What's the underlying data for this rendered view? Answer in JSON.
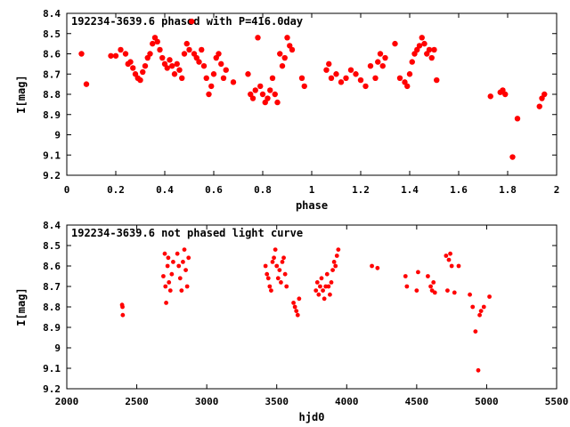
{
  "chart_data": [
    {
      "type": "scatter",
      "title": "192234-3639.6 phased with P=416.0day",
      "xlabel": "phase",
      "ylabel": "I[mag]",
      "xlim": [
        0,
        2
      ],
      "ylim": [
        8.4,
        9.2
      ],
      "y_inverted": true,
      "x_ticks": [
        "0",
        "0.2",
        "0.4",
        "0.6",
        "0.8",
        "1",
        "1.2",
        "1.4",
        "1.6",
        "1.8",
        "2"
      ],
      "y_ticks": [
        "8.4",
        "8.5",
        "8.6",
        "8.7",
        "8.8",
        "8.9",
        "9",
        "9.1",
        "9.2"
      ],
      "marker_color": "#ff0000",
      "x": [
        0.06,
        0.08,
        0.18,
        0.2,
        0.22,
        0.24,
        0.25,
        0.26,
        0.27,
        0.28,
        0.29,
        0.3,
        0.31,
        0.32,
        0.33,
        0.34,
        0.35,
        0.36,
        0.37,
        0.38,
        0.39,
        0.4,
        0.41,
        0.42,
        0.43,
        0.44,
        0.45,
        0.46,
        0.47,
        0.48,
        0.49,
        0.5,
        0.51,
        0.52,
        0.53,
        0.54,
        0.55,
        0.56,
        0.57,
        0.58,
        0.59,
        0.6,
        0.61,
        0.62,
        0.63,
        0.64,
        0.65,
        0.68,
        0.74,
        0.75,
        0.76,
        0.77,
        0.78,
        0.79,
        0.8,
        0.81,
        0.82,
        0.83,
        0.84,
        0.85,
        0.86,
        0.87,
        0.88,
        0.89,
        0.9,
        0.91,
        0.92,
        0.96,
        0.97,
        1.06,
        1.07,
        1.08,
        1.1,
        1.12,
        1.14,
        1.16,
        1.18,
        1.2,
        1.22,
        1.24,
        1.26,
        1.27,
        1.28,
        1.29,
        1.3,
        1.34,
        1.36,
        1.38,
        1.39,
        1.4,
        1.41,
        1.42,
        1.43,
        1.44,
        1.45,
        1.46,
        1.47,
        1.48,
        1.49,
        1.5,
        1.51,
        1.73,
        1.77,
        1.78,
        1.79,
        1.82,
        1.84,
        1.93,
        1.94,
        1.95
      ],
      "y": [
        8.6,
        8.75,
        8.61,
        8.61,
        8.58,
        8.6,
        8.65,
        8.64,
        8.67,
        8.7,
        8.72,
        8.73,
        8.69,
        8.66,
        8.62,
        8.6,
        8.55,
        8.52,
        8.54,
        8.58,
        8.62,
        8.65,
        8.67,
        8.63,
        8.66,
        8.7,
        8.65,
        8.68,
        8.72,
        8.6,
        8.55,
        8.58,
        8.44,
        8.6,
        8.62,
        8.64,
        8.58,
        8.66,
        8.72,
        8.8,
        8.76,
        8.7,
        8.62,
        8.6,
        8.65,
        8.72,
        8.68,
        8.74,
        8.7,
        8.8,
        8.82,
        8.78,
        8.52,
        8.76,
        8.8,
        8.84,
        8.82,
        8.78,
        8.72,
        8.8,
        8.84,
        8.6,
        8.66,
        8.62,
        8.52,
        8.56,
        8.58,
        8.72,
        8.76,
        8.68,
        8.65,
        8.72,
        8.7,
        8.74,
        8.72,
        8.68,
        8.7,
        8.73,
        8.76,
        8.66,
        8.72,
        8.64,
        8.6,
        8.66,
        8.62,
        8.55,
        8.72,
        8.74,
        8.76,
        8.7,
        8.64,
        8.6,
        8.58,
        8.56,
        8.52,
        8.55,
        8.6,
        8.58,
        8.62,
        8.58,
        8.73,
        8.81,
        8.79,
        8.78,
        8.8,
        9.11,
        8.92,
        8.86,
        8.82,
        8.8
      ],
      "subtitle": ""
    },
    {
      "type": "scatter",
      "title": "192234-3639.6 not phased light curve",
      "xlabel": "hjd0",
      "ylabel": "I[mag]",
      "xlim": [
        2000,
        5500
      ],
      "ylim": [
        8.4,
        9.2
      ],
      "y_inverted": true,
      "x_ticks": [
        "2000",
        "2500",
        "3000",
        "3500",
        "4000",
        "4500",
        "5000",
        "5500"
      ],
      "y_ticks": [
        "8.4",
        "8.5",
        "8.6",
        "8.7",
        "8.8",
        "8.9",
        "9",
        "9.1",
        "9.2"
      ],
      "marker_color": "#ff0000",
      "x": [
        2395,
        2398,
        2400,
        2690,
        2700,
        2705,
        2710,
        2720,
        2725,
        2730,
        2740,
        2750,
        2760,
        2790,
        2800,
        2810,
        2820,
        2830,
        2840,
        2850,
        2860,
        2870,
        3420,
        3430,
        3440,
        3450,
        3460,
        3470,
        3480,
        3490,
        3500,
        3510,
        3520,
        3530,
        3540,
        3550,
        3560,
        3570,
        3620,
        3630,
        3640,
        3650,
        3660,
        3780,
        3790,
        3800,
        3810,
        3820,
        3830,
        3840,
        3850,
        3860,
        3870,
        3880,
        3890,
        3900,
        3910,
        3920,
        3930,
        3940,
        4180,
        4220,
        4420,
        4430,
        4500,
        4510,
        4580,
        4600,
        4610,
        4620,
        4630,
        4710,
        4720,
        4730,
        4740,
        4750,
        4770,
        4800,
        4880,
        4900,
        4920,
        4940,
        4950,
        4960,
        4980,
        5020
      ],
      "y": [
        8.79,
        8.8,
        8.84,
        8.65,
        8.54,
        8.7,
        8.78,
        8.6,
        8.56,
        8.68,
        8.72,
        8.64,
        8.58,
        8.54,
        8.6,
        8.66,
        8.72,
        8.58,
        8.52,
        8.62,
        8.7,
        8.56,
        8.6,
        8.64,
        8.66,
        8.7,
        8.72,
        8.58,
        8.56,
        8.52,
        8.6,
        8.66,
        8.62,
        8.68,
        8.58,
        8.56,
        8.64,
        8.7,
        8.78,
        8.8,
        8.82,
        8.84,
        8.76,
        8.72,
        8.68,
        8.74,
        8.7,
        8.66,
        8.72,
        8.76,
        8.7,
        8.64,
        8.7,
        8.74,
        8.68,
        8.62,
        8.58,
        8.6,
        8.55,
        8.52,
        8.6,
        8.61,
        8.65,
        8.7,
        8.72,
        8.63,
        8.65,
        8.7,
        8.72,
        8.68,
        8.73,
        8.55,
        8.72,
        8.57,
        8.54,
        8.6,
        8.73,
        8.6,
        8.74,
        8.8,
        8.92,
        9.11,
        8.84,
        8.82,
        8.8,
        8.75
      ],
      "subtitle": ""
    }
  ]
}
